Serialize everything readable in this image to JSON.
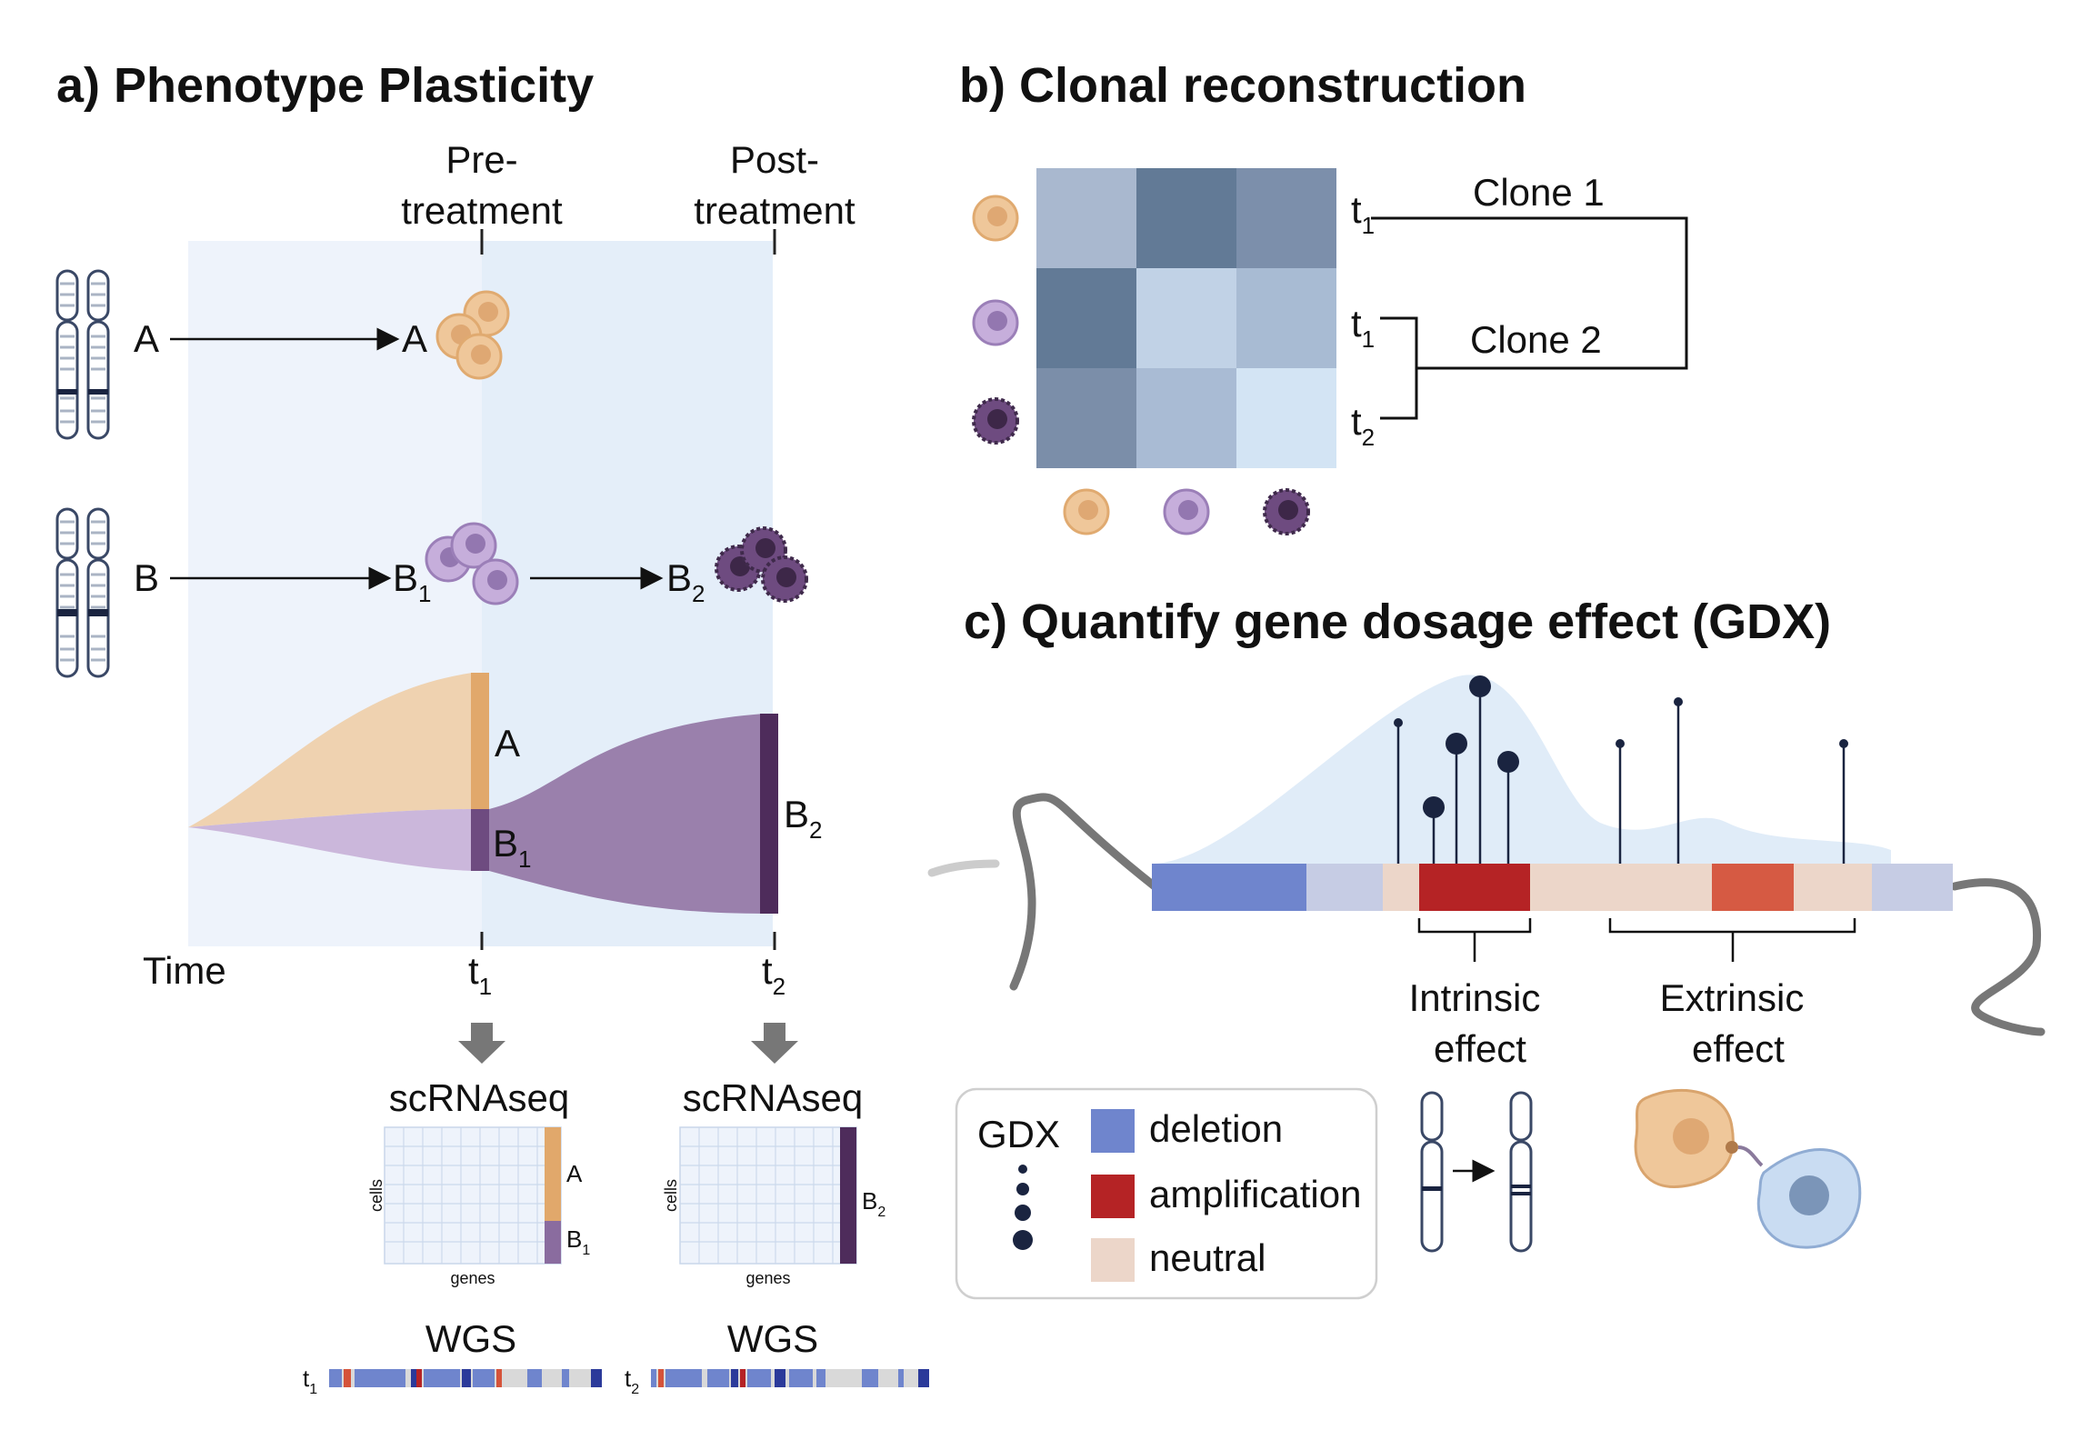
{
  "panel_a": {
    "title": "a)  Phenotype Plasticity",
    "pre_line1": "Pre-",
    "pre_line2": "treatment",
    "post_line1": "Post-",
    "post_line2": "treatment",
    "clone_a": "A",
    "clone_b": "B",
    "b1": "B",
    "b1_sub": "1",
    "b2": "B",
    "b2_sub": "2",
    "time": "Time",
    "t1": "t",
    "t1_sub": "1",
    "t2": "t",
    "t2_sub": "2",
    "scrna": "scRNAseq",
    "cells": "cells",
    "genes": "genes",
    "wgs": "WGS"
  },
  "panel_b": {
    "title": "b) Clonal reconstruction",
    "clone1": "Clone 1",
    "clone2": "Clone 2",
    "heatmap": [
      [
        "#a9b8cf",
        "#627a96",
        "#7c8fab"
      ],
      [
        "#627a96",
        "#c1d2e6",
        "#a8bbd3"
      ],
      [
        "#7b8ea9",
        "#a9bbd4",
        "#d3e4f4"
      ]
    ]
  },
  "panel_c": {
    "title": "c) Quantify gene dosage effect (GDX)",
    "intrinsic_1": "Intrinsic",
    "intrinsic_2": "effect",
    "extrinsic_1": "Extrinsic",
    "extrinsic_2": "effect",
    "legend": {
      "gdx": "GDX",
      "deletion": "deletion",
      "amplification": "amplification",
      "neutral": "neutral"
    }
  },
  "colors": {
    "orange": "#efc79a",
    "purple_light": "#c9b5da",
    "purple": "#9a7fab",
    "purple_dark": "#5d3a6b",
    "deletion": "#6f85cd",
    "amplification": "#b52325",
    "neutral": "#ecd6c9",
    "navy": "#1a2440"
  }
}
